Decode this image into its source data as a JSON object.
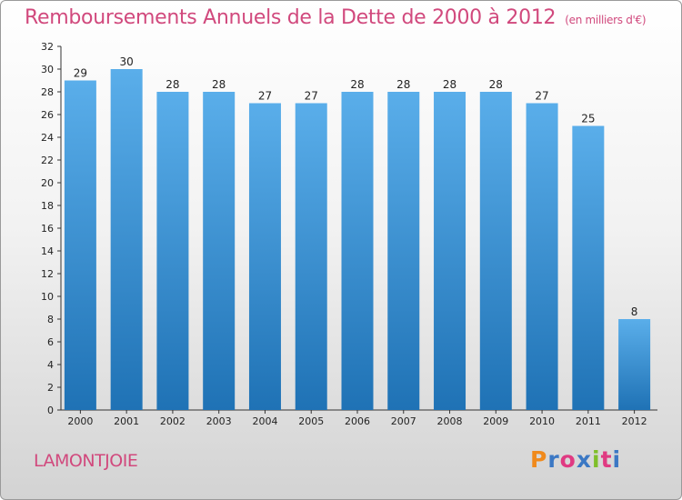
{
  "title": "Remboursements Annuels de la Dette de 2000 à 2012",
  "unit": "(en milliers d'€)",
  "place": "LAMONTJOIE",
  "logo": {
    "letters": [
      "P",
      "r",
      "o",
      "x",
      "i",
      "t",
      "i"
    ],
    "colors": [
      "#f08a1c",
      "#3b78c4",
      "#e03a82",
      "#3b78c4",
      "#7fbf2a",
      "#e03a82",
      "#3b78c4"
    ]
  },
  "colors": {
    "bar": "#3e97dc",
    "title": "#d1497d"
  },
  "chart_data": {
    "type": "bar",
    "title": "Remboursements Annuels de la Dette de 2000 à 2012",
    "xlabel": "",
    "ylabel": "",
    "categories": [
      "2000",
      "2001",
      "2002",
      "2003",
      "2004",
      "2005",
      "2006",
      "2007",
      "2008",
      "2009",
      "2010",
      "2011",
      "2012"
    ],
    "values": [
      29,
      30,
      28,
      28,
      27,
      27,
      28,
      28,
      28,
      28,
      27,
      25,
      8
    ],
    "ylim": [
      0,
      32
    ],
    "yticks": [
      0,
      2,
      4,
      6,
      8,
      10,
      12,
      14,
      16,
      18,
      20,
      22,
      24,
      26,
      28,
      30,
      32
    ],
    "grid": false
  }
}
